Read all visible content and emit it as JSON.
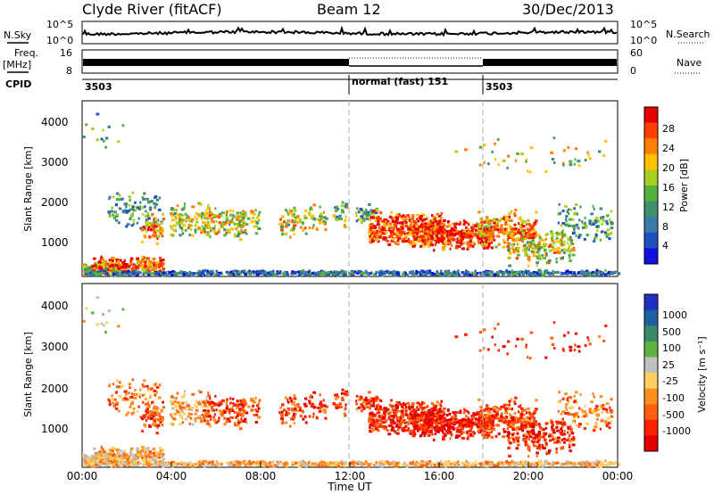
{
  "header": {
    "station": "Clyde River (fitACF)",
    "beam": "Beam 12",
    "date": "30/Dec/2013"
  },
  "left_labels": {
    "nsky": "N.Sky",
    "freq_line1": "Freq.",
    "freq_line2": "[MHz]",
    "cpid": "CPID"
  },
  "right_labels": {
    "nsearch": "N.Search",
    "nave": "Nave"
  },
  "chart_data": [
    {
      "type": "line",
      "name": "noise-panel",
      "yticks_left": [
        "10^5",
        "10^0"
      ],
      "yticks_right": [
        "10^5",
        "10^0"
      ],
      "series_labels": [
        "N.Sky",
        "N.Search"
      ]
    },
    {
      "type": "line",
      "name": "frequency-panel",
      "yticks_left": [
        "16",
        "8"
      ],
      "yticks_right": [
        "60",
        "0"
      ],
      "cpid_segments": [
        {
          "start_hour": 0,
          "end_hour": 12,
          "label": "3503"
        },
        {
          "start_hour": 12,
          "end_hour": 18,
          "label": "normal (fast) 151"
        },
        {
          "start_hour": 18,
          "end_hour": 24,
          "label": "3503"
        }
      ]
    },
    {
      "type": "heatmap",
      "name": "power-panel",
      "ylabel": "Slant Range [km]",
      "ylim": [
        180,
        4500
      ],
      "yticks": [
        1000,
        2000,
        3000,
        4000
      ],
      "xlim": [
        0,
        24
      ],
      "colorbar": {
        "label": "Power [dB]",
        "ticks": [
          "4",
          "8",
          "12",
          "16",
          "20",
          "24",
          "28"
        ],
        "range": [
          0,
          32
        ],
        "colors": [
          "#1010e0",
          "#2050c0",
          "#3a7aa8",
          "#3f8f6c",
          "#55b040",
          "#a8d020",
          "#ffc000",
          "#ff8000",
          "#ff4000",
          "#e80000"
        ]
      }
    },
    {
      "type": "heatmap",
      "name": "velocity-panel",
      "ylabel": "Slant Range [km]",
      "ylim": [
        180,
        4500
      ],
      "yticks": [
        1000,
        2000,
        3000,
        4000
      ],
      "xlim": [
        0,
        24
      ],
      "xticks": [
        "00:00",
        "04:00",
        "08:00",
        "12:00",
        "16:00",
        "20:00",
        "00:00"
      ],
      "xlabel": "Time UT",
      "colorbar": {
        "label": "Velocity [m s⁻¹]",
        "ticks": [
          "1000",
          "500",
          "100",
          "25",
          "-25",
          "-100",
          "-500",
          "-1000"
        ],
        "colors": [
          "#2030c0",
          "#2060a0",
          "#3a8a6a",
          "#60b040",
          "#c0c0c0",
          "#ffd060",
          "#ff9020",
          "#ff6010",
          "#ff2000",
          "#e00000"
        ]
      }
    }
  ]
}
